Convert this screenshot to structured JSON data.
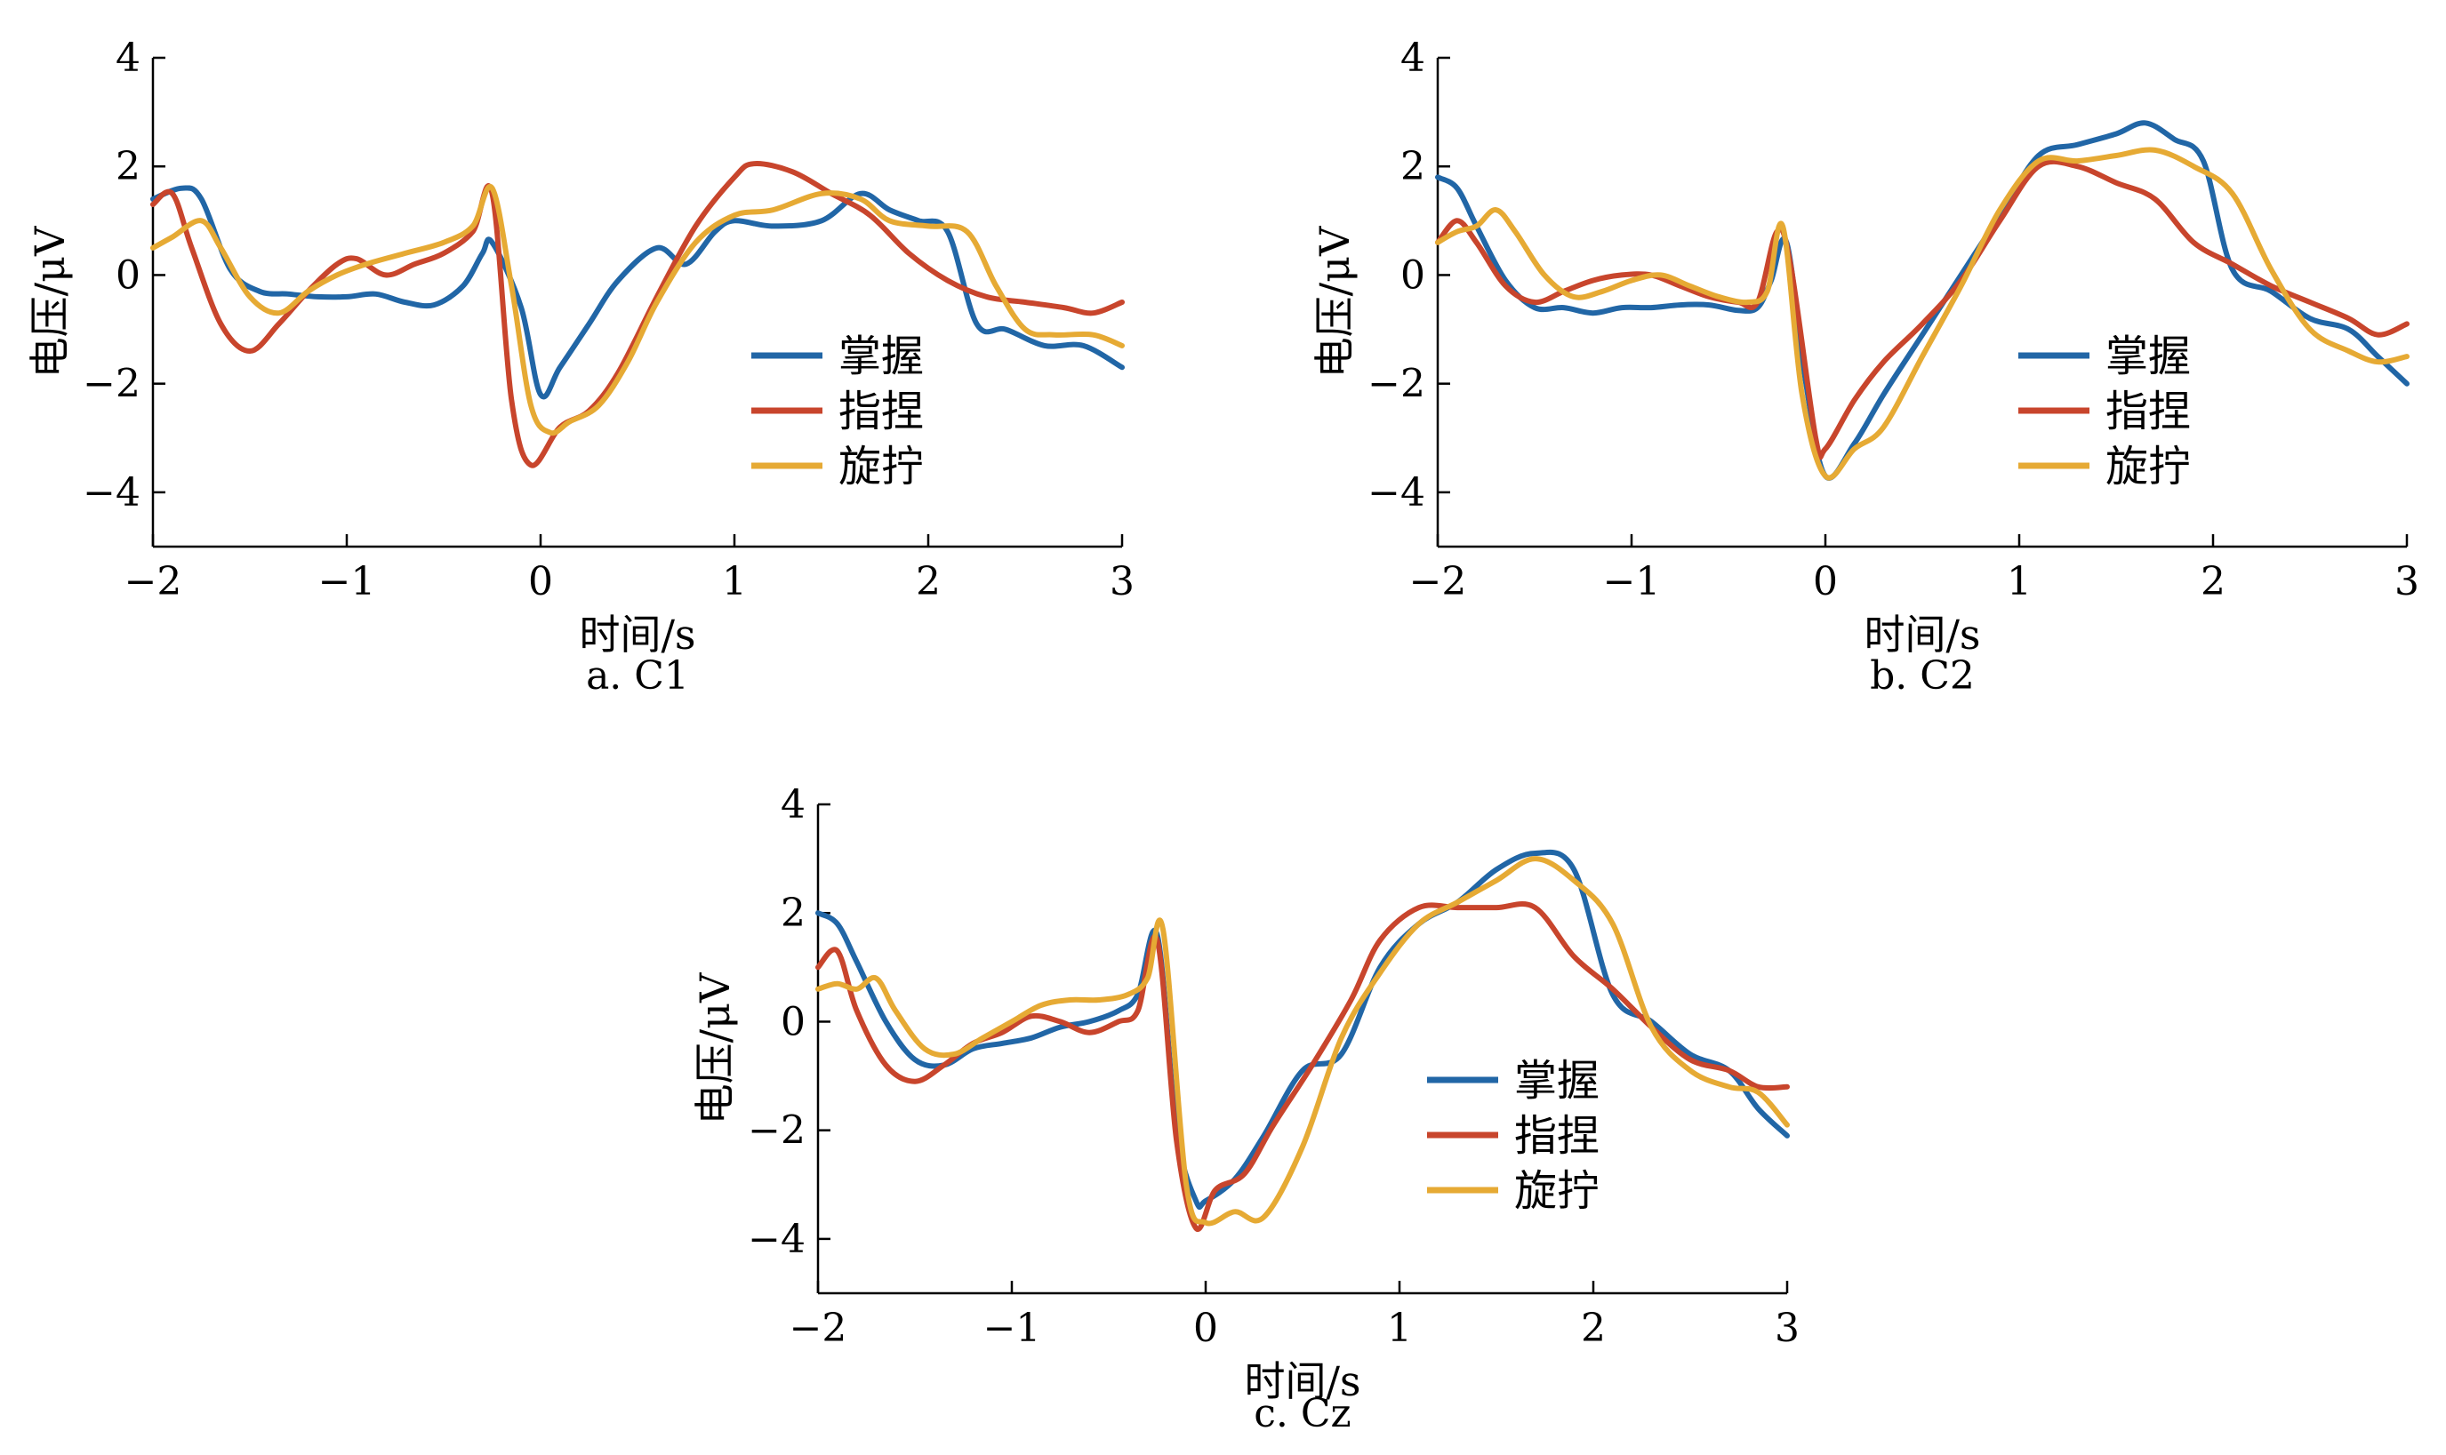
{
  "chart_data": [
    {
      "type": "line",
      "caption": "a. C1",
      "xlabel": "时间/s",
      "ylabel": "电压/μV",
      "xlim": [
        -2,
        3
      ],
      "ylim": [
        -5,
        4
      ],
      "xticks": [
        -2,
        -1,
        0,
        1,
        2,
        3
      ],
      "yticks": [
        -4,
        -2,
        0,
        2,
        4
      ],
      "xtick_labels": [
        "−2",
        "−1",
        "0",
        "1",
        "2",
        "3"
      ],
      "ytick_labels": [
        "−4",
        "−2",
        "0",
        "2",
        "4"
      ],
      "legend_position": "lower-right",
      "series": [
        {
          "name": "掌握",
          "color": "#2166a6",
          "x": [
            -2,
            -1.85,
            -1.75,
            -1.6,
            -1.45,
            -1.3,
            -1.15,
            -1,
            -0.85,
            -0.7,
            -0.55,
            -0.4,
            -0.3,
            -0.25,
            -0.1,
            0,
            0.1,
            0.25,
            0.4,
            0.6,
            0.75,
            0.9,
            1,
            1.2,
            1.45,
            1.65,
            1.8,
            1.95,
            2.1,
            2.25,
            2.4,
            2.6,
            2.8,
            3
          ],
          "y": [
            1.4,
            1.6,
            1.4,
            0.1,
            -0.3,
            -0.35,
            -0.4,
            -0.4,
            -0.35,
            -0.5,
            -0.55,
            -0.2,
            0.4,
            0.6,
            -0.6,
            -2.2,
            -1.7,
            -0.9,
            -0.1,
            0.5,
            0.2,
            0.8,
            1.0,
            0.9,
            1.0,
            1.5,
            1.2,
            1.0,
            0.8,
            -0.9,
            -1.0,
            -1.3,
            -1.3,
            -1.7
          ]
        },
        {
          "name": "指捏",
          "color": "#c8452c",
          "x": [
            -2,
            -1.9,
            -1.8,
            -1.65,
            -1.5,
            -1.35,
            -1.2,
            -1.05,
            -0.95,
            -0.8,
            -0.65,
            -0.5,
            -0.35,
            -0.25,
            -0.15,
            -0.05,
            0.1,
            0.25,
            0.4,
            0.6,
            0.8,
            1.0,
            1.1,
            1.3,
            1.5,
            1.7,
            1.9,
            2.1,
            2.3,
            2.5,
            2.7,
            2.85,
            3
          ],
          "y": [
            1.3,
            1.5,
            0.5,
            -0.9,
            -1.4,
            -0.9,
            -0.3,
            0.2,
            0.3,
            0.0,
            0.2,
            0.4,
            0.8,
            1.5,
            -2.3,
            -3.5,
            -2.8,
            -2.5,
            -1.8,
            -0.4,
            0.9,
            1.8,
            2.05,
            1.9,
            1.5,
            1.1,
            0.4,
            -0.1,
            -0.4,
            -0.5,
            -0.6,
            -0.7,
            -0.5
          ]
        },
        {
          "name": "旋拧",
          "color": "#e6aa34",
          "x": [
            -2,
            -1.9,
            -1.75,
            -1.65,
            -1.5,
            -1.35,
            -1.2,
            -1.05,
            -0.9,
            -0.7,
            -0.5,
            -0.35,
            -0.25,
            -0.15,
            -0.05,
            0.05,
            0.15,
            0.3,
            0.45,
            0.6,
            0.8,
            1.0,
            1.2,
            1.45,
            1.65,
            1.8,
            2.0,
            2.2,
            2.35,
            2.5,
            2.65,
            2.85,
            3
          ],
          "y": [
            0.5,
            0.7,
            1.0,
            0.5,
            -0.4,
            -0.7,
            -0.3,
            0.0,
            0.2,
            0.4,
            0.6,
            0.9,
            1.6,
            -0.2,
            -2.4,
            -2.9,
            -2.7,
            -2.4,
            -1.6,
            -0.5,
            0.6,
            1.1,
            1.2,
            1.5,
            1.4,
            1.0,
            0.9,
            0.8,
            -0.2,
            -1.0,
            -1.1,
            -1.1,
            -1.3
          ]
        }
      ]
    },
    {
      "type": "line",
      "caption": "b. C2",
      "xlabel": "时间/s",
      "ylabel": "电压/μV",
      "xlim": [
        -2,
        3
      ],
      "ylim": [
        -5,
        4
      ],
      "xticks": [
        -2,
        -1,
        0,
        1,
        2,
        3
      ],
      "yticks": [
        -4,
        -2,
        0,
        2,
        4
      ],
      "xtick_labels": [
        "−2",
        "−1",
        "0",
        "1",
        "2",
        "3"
      ],
      "ytick_labels": [
        "−4",
        "−2",
        "0",
        "2",
        "4"
      ],
      "legend_position": "right",
      "series": [
        {
          "name": "掌握",
          "color": "#2166a6",
          "x": [
            -2,
            -1.9,
            -1.8,
            -1.65,
            -1.5,
            -1.35,
            -1.2,
            -1.05,
            -0.9,
            -0.75,
            -0.6,
            -0.45,
            -0.35,
            -0.28,
            -0.2,
            -0.1,
            0,
            0.15,
            0.3,
            0.5,
            0.7,
            0.9,
            1.1,
            1.3,
            1.5,
            1.65,
            1.8,
            1.95,
            2.1,
            2.3,
            2.5,
            2.7,
            2.85,
            3
          ],
          "y": [
            1.8,
            1.6,
            0.9,
            -0.1,
            -0.6,
            -0.6,
            -0.7,
            -0.6,
            -0.6,
            -0.55,
            -0.55,
            -0.65,
            -0.6,
            -0.1,
            0.6,
            -2.0,
            -3.7,
            -3.1,
            -2.2,
            -1.1,
            0.0,
            1.1,
            2.2,
            2.4,
            2.6,
            2.8,
            2.5,
            2.1,
            0.1,
            -0.3,
            -0.8,
            -1.0,
            -1.5,
            -2.0
          ]
        },
        {
          "name": "指捏",
          "color": "#c8452c",
          "x": [
            -2,
            -1.9,
            -1.8,
            -1.65,
            -1.5,
            -1.35,
            -1.2,
            -1.05,
            -0.9,
            -0.75,
            -0.6,
            -0.45,
            -0.35,
            -0.25,
            -0.18,
            -0.05,
            0,
            0.15,
            0.3,
            0.5,
            0.7,
            0.9,
            1.1,
            1.3,
            1.5,
            1.7,
            1.9,
            2.1,
            2.3,
            2.5,
            2.7,
            2.85,
            3
          ],
          "y": [
            0.6,
            1.0,
            0.6,
            -0.2,
            -0.5,
            -0.3,
            -0.1,
            0.0,
            0.0,
            -0.2,
            -0.4,
            -0.5,
            -0.5,
            0.8,
            0.2,
            -3.0,
            -3.2,
            -2.3,
            -1.6,
            -0.9,
            -0.1,
            1.0,
            2.0,
            2.0,
            1.7,
            1.4,
            0.6,
            0.2,
            -0.2,
            -0.5,
            -0.8,
            -1.1,
            -0.9
          ]
        },
        {
          "name": "旋拧",
          "color": "#e6aa34",
          "x": [
            -2,
            -1.9,
            -1.8,
            -1.7,
            -1.6,
            -1.45,
            -1.3,
            -1.15,
            -1.0,
            -0.85,
            -0.7,
            -0.55,
            -0.4,
            -0.3,
            -0.22,
            -0.12,
            0,
            0.15,
            0.3,
            0.5,
            0.7,
            0.9,
            1.1,
            1.3,
            1.5,
            1.7,
            1.9,
            2.1,
            2.3,
            2.5,
            2.7,
            2.85,
            3
          ],
          "y": [
            0.6,
            0.8,
            0.9,
            1.2,
            0.8,
            0.0,
            -0.4,
            -0.3,
            -0.1,
            0.0,
            -0.2,
            -0.4,
            -0.5,
            -0.3,
            0.9,
            -2.2,
            -3.7,
            -3.2,
            -2.8,
            -1.5,
            -0.2,
            1.2,
            2.1,
            2.1,
            2.2,
            2.3,
            2.0,
            1.5,
            0.1,
            -1.0,
            -1.4,
            -1.6,
            -1.5
          ]
        }
      ]
    },
    {
      "type": "line",
      "caption": "c. Cz",
      "xlabel": "时间/s",
      "ylabel": "电压/μV",
      "xlim": [
        -2,
        3
      ],
      "ylim": [
        -5,
        4
      ],
      "xticks": [
        -2,
        -1,
        0,
        1,
        2,
        3
      ],
      "yticks": [
        -4,
        -2,
        0,
        2,
        4
      ],
      "xtick_labels": [
        "−2",
        "−1",
        "0",
        "1",
        "2",
        "3"
      ],
      "ytick_labels": [
        "−4",
        "−2",
        "0",
        "2",
        "4"
      ],
      "legend_position": "lower-right",
      "series": [
        {
          "name": "掌握",
          "color": "#2166a6",
          "x": [
            -2,
            -1.9,
            -1.8,
            -1.65,
            -1.5,
            -1.35,
            -1.2,
            -1.05,
            -0.9,
            -0.75,
            -0.6,
            -0.45,
            -0.35,
            -0.25,
            -0.15,
            -0.05,
            0,
            0.15,
            0.3,
            0.5,
            0.7,
            0.9,
            1.1,
            1.3,
            1.5,
            1.7,
            1.9,
            2.1,
            2.3,
            2.5,
            2.7,
            2.85,
            3
          ],
          "y": [
            2.0,
            1.8,
            1.1,
            0.0,
            -0.7,
            -0.8,
            -0.5,
            -0.4,
            -0.3,
            -0.1,
            0.0,
            0.2,
            0.5,
            1.6,
            -2.0,
            -3.3,
            -3.3,
            -2.9,
            -2.1,
            -0.9,
            -0.6,
            1.0,
            1.8,
            2.2,
            2.8,
            3.1,
            2.8,
            0.5,
            0.0,
            -0.6,
            -0.9,
            -1.6,
            -2.1
          ]
        },
        {
          "name": "指捏",
          "color": "#c8452c",
          "x": [
            -2,
            -1.9,
            -1.8,
            -1.65,
            -1.5,
            -1.35,
            -1.2,
            -1.05,
            -0.9,
            -0.75,
            -0.6,
            -0.45,
            -0.35,
            -0.25,
            -0.15,
            -0.05,
            0.05,
            0.2,
            0.35,
            0.55,
            0.75,
            0.9,
            1.1,
            1.3,
            1.5,
            1.7,
            1.9,
            2.1,
            2.3,
            2.5,
            2.7,
            2.85,
            3
          ],
          "y": [
            1.0,
            1.3,
            0.2,
            -0.8,
            -1.1,
            -0.8,
            -0.4,
            -0.2,
            0.1,
            0.0,
            -0.2,
            0.0,
            0.2,
            1.5,
            -2.2,
            -3.8,
            -3.1,
            -2.8,
            -1.9,
            -0.8,
            0.4,
            1.5,
            2.1,
            2.1,
            2.1,
            2.1,
            1.2,
            0.6,
            -0.1,
            -0.7,
            -0.9,
            -1.2,
            -1.2
          ]
        },
        {
          "name": "旋拧",
          "color": "#e6aa34",
          "x": [
            -2,
            -1.9,
            -1.8,
            -1.7,
            -1.6,
            -1.45,
            -1.3,
            -1.15,
            -1.0,
            -0.85,
            -0.7,
            -0.55,
            -0.4,
            -0.3,
            -0.22,
            -0.1,
            0,
            0.15,
            0.3,
            0.5,
            0.7,
            0.9,
            1.1,
            1.3,
            1.5,
            1.7,
            1.9,
            2.1,
            2.3,
            2.5,
            2.7,
            2.85,
            3
          ],
          "y": [
            0.6,
            0.7,
            0.6,
            0.8,
            0.2,
            -0.5,
            -0.6,
            -0.3,
            0.0,
            0.3,
            0.4,
            0.4,
            0.5,
            0.8,
            1.7,
            -3.0,
            -3.7,
            -3.5,
            -3.6,
            -2.3,
            -0.3,
            0.9,
            1.8,
            2.2,
            2.6,
            3.0,
            2.6,
            1.8,
            -0.1,
            -0.9,
            -1.2,
            -1.3,
            -1.9
          ]
        }
      ]
    }
  ]
}
